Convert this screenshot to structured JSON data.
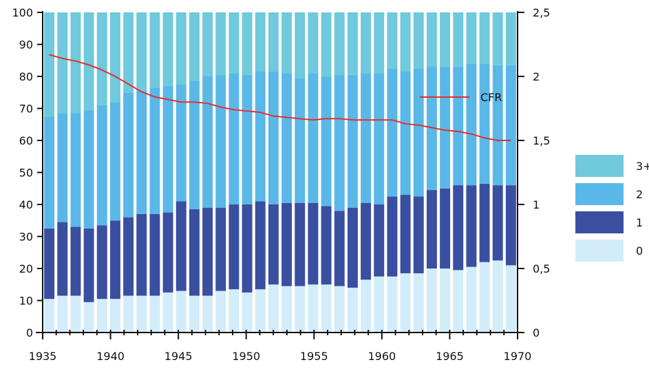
{
  "chart_data": {
    "type": "bar",
    "stacked": true,
    "title": "",
    "xlabel": "",
    "ylabel": "",
    "x_start": 1935,
    "x_end": 1970,
    "categories": [
      1935,
      1936,
      1937,
      1938,
      1939,
      1940,
      1941,
      1942,
      1943,
      1944,
      1945,
      1946,
      1947,
      1948,
      1949,
      1950,
      1951,
      1952,
      1953,
      1954,
      1955,
      1956,
      1957,
      1958,
      1959,
      1960,
      1961,
      1962,
      1963,
      1964,
      1965,
      1966,
      1967,
      1968,
      1969,
      1970
    ],
    "x_ticks": [
      "1935",
      "1940",
      "1945",
      "1950",
      "1955",
      "1960",
      "1965",
      "1970"
    ],
    "x_tick_values": [
      1935,
      1940,
      1945,
      1950,
      1955,
      1960,
      1965,
      1970
    ],
    "y_left": {
      "range": [
        0,
        100
      ],
      "ticks": [
        "0",
        "10",
        "20",
        "30",
        "40",
        "50",
        "60",
        "70",
        "80",
        "90",
        "100"
      ]
    },
    "y_right": {
      "range": [
        0,
        2.5
      ],
      "ticks": [
        "0",
        "0,5",
        "1",
        "1,5",
        "2",
        "2,5"
      ]
    },
    "series": [
      {
        "name": "0",
        "color": "#d2ecfa",
        "values": [
          10.5,
          11.5,
          11.5,
          9.5,
          10.5,
          10.5,
          11.5,
          11.5,
          11.5,
          12.5,
          13,
          11.5,
          11.5,
          13,
          13.5,
          12.5,
          13.5,
          15,
          14.5,
          14.5,
          15,
          15,
          14.5,
          14,
          16.5,
          17.5,
          17.5,
          18.5,
          18.5,
          20,
          20,
          19.5,
          20.5,
          22,
          22.5,
          21
        ]
      },
      {
        "name": "1",
        "color": "#3a4fa0",
        "values": [
          22,
          23,
          21.5,
          23,
          23,
          24.5,
          24.5,
          25.5,
          25.5,
          25,
          28,
          27,
          27.5,
          26,
          26.5,
          27.5,
          27.5,
          25,
          26,
          26,
          25.5,
          24.5,
          23.5,
          25,
          24,
          22.5,
          25,
          24.5,
          24,
          24.5,
          25,
          26.5,
          25.5,
          24.5,
          23.5,
          25
        ]
      },
      {
        "name": "2",
        "color": "#5ab8e8",
        "values": [
          35,
          34,
          35.5,
          37,
          37.5,
          37,
          39,
          38.5,
          39.5,
          39.5,
          36.5,
          40,
          41,
          41.5,
          41,
          40.5,
          40.5,
          41.5,
          40.5,
          39,
          40.5,
          40.5,
          42.5,
          41.5,
          40.5,
          41,
          40,
          38.5,
          40,
          38.5,
          38,
          37,
          38,
          37.5,
          37.5,
          37.5
        ]
      },
      {
        "name": "3+",
        "color": "#70c9dc",
        "values": [
          32.5,
          31.5,
          31.5,
          30.5,
          29,
          28,
          25,
          24.5,
          23.5,
          23,
          22.5,
          21.5,
          20,
          19.5,
          19,
          19.5,
          18.5,
          18.5,
          19,
          20.5,
          19,
          20,
          19.5,
          19.5,
          19,
          19,
          17.5,
          18.5,
          17.5,
          17,
          17,
          17,
          16,
          16,
          16.5,
          16.5
        ]
      }
    ],
    "line_series": {
      "name": "CFR",
      "color": "#e03030",
      "axis": "right",
      "values": [
        2.17,
        2.14,
        2.12,
        2.09,
        2.05,
        2.0,
        1.94,
        1.88,
        1.84,
        1.82,
        1.8,
        1.8,
        1.79,
        1.76,
        1.74,
        1.73,
        1.72,
        1.69,
        1.68,
        1.67,
        1.66,
        1.67,
        1.67,
        1.66,
        1.66,
        1.66,
        1.66,
        1.63,
        1.62,
        1.6,
        1.58,
        1.57,
        1.55,
        1.52,
        1.5,
        1.5
      ]
    },
    "legend": {
      "placement": "right",
      "entries": [
        {
          "label": "3+",
          "color": "#70c9dc"
        },
        {
          "label": "2",
          "color": "#5ab8e8"
        },
        {
          "label": "1",
          "color": "#3a4fa0"
        },
        {
          "label": "0",
          "color": "#d2ecfa"
        }
      ]
    },
    "grid": false
  }
}
